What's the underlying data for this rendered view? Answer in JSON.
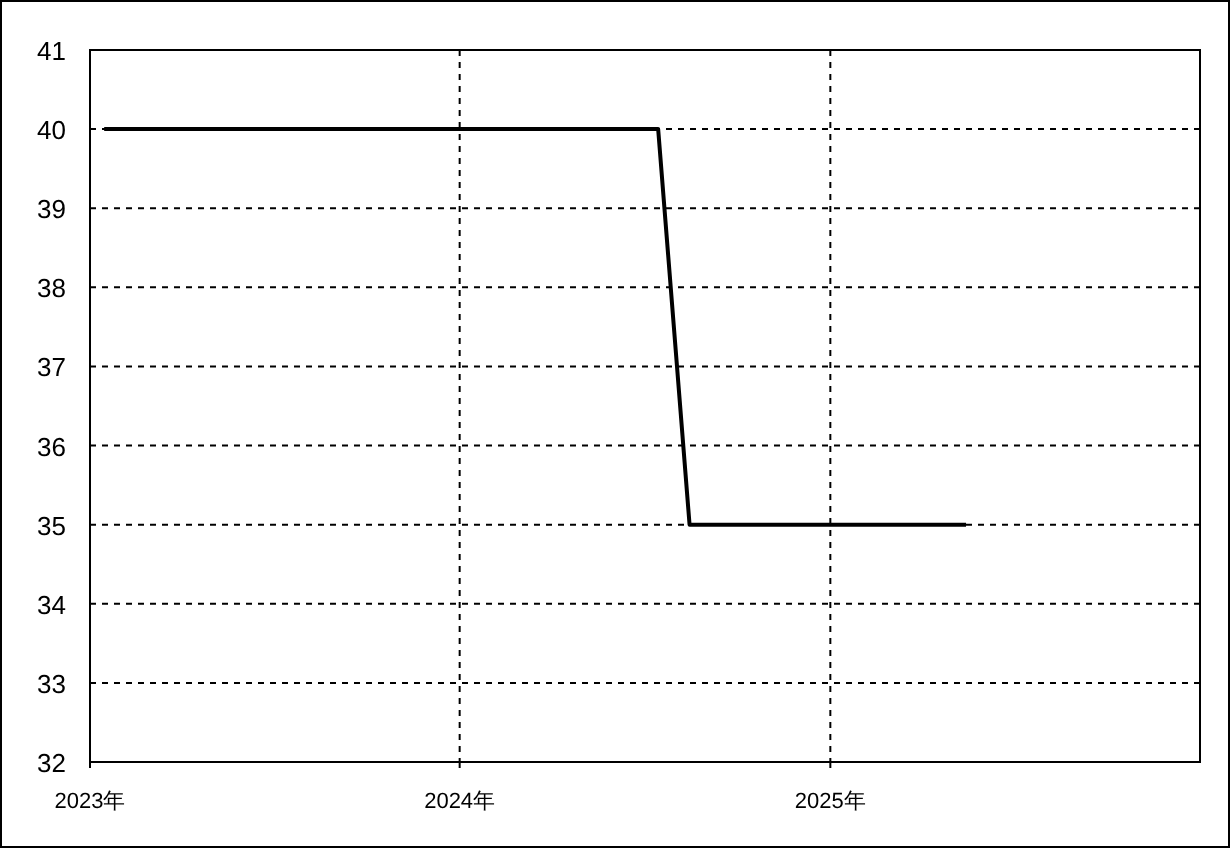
{
  "chart_data": {
    "type": "line",
    "x": [
      "2023-01-15",
      "2024-07-15",
      "2024-08-15",
      "2025-05-15"
    ],
    "series": [
      {
        "color": "#000000",
        "values": [
          40,
          40,
          35,
          35
        ]
      }
    ],
    "xlim": [
      "2023-01-01",
      "2026-01-01"
    ],
    "xticks": [
      {
        "value": "2023-01-01",
        "label": "2023年"
      },
      {
        "value": "2024-01-01",
        "label": "2024年"
      },
      {
        "value": "2025-01-01",
        "label": "2025年"
      }
    ],
    "ylim": [
      32,
      41
    ],
    "yticks": [
      32,
      33,
      34,
      35,
      36,
      37,
      38,
      39,
      40,
      41
    ],
    "grid": true,
    "marker": "none",
    "line_style": "solid"
  }
}
